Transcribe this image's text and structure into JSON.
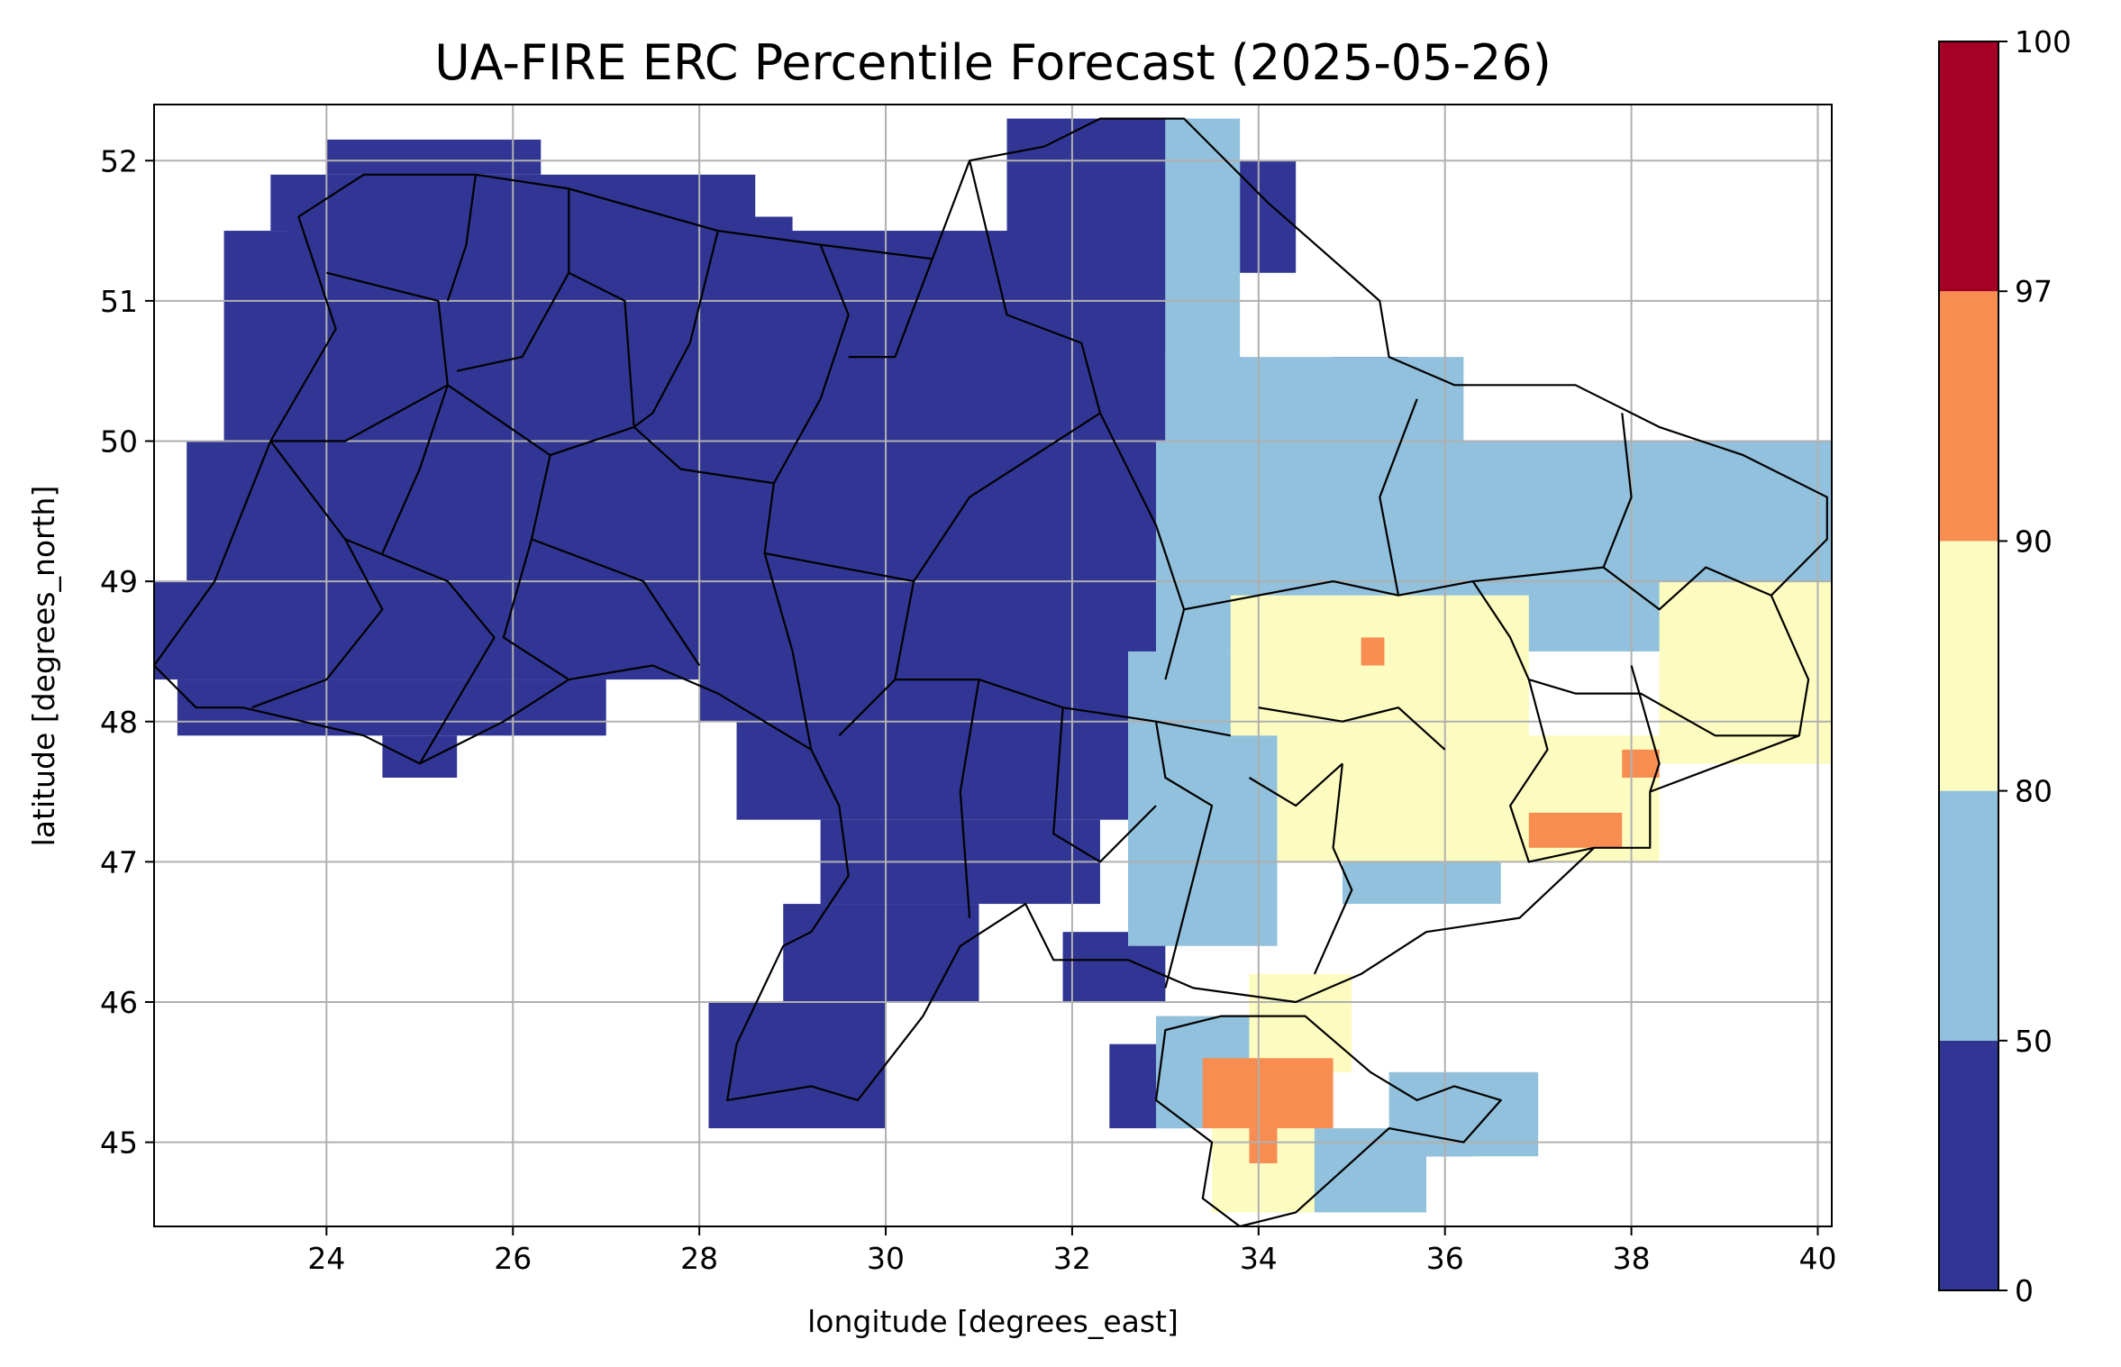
{
  "chart_data": {
    "type": "heatmap",
    "title": "UA-FIRE ERC Percentile Forecast (2025-05-26)",
    "xlabel": "longitude [degrees_east]",
    "ylabel": "latitude [degrees_north]",
    "xlim": [
      22.15,
      40.15
    ],
    "ylim": [
      44.4,
      52.4
    ],
    "xticks": [
      24,
      26,
      28,
      30,
      32,
      34,
      36,
      38,
      40
    ],
    "yticks": [
      45,
      46,
      47,
      48,
      49,
      50,
      51,
      52
    ],
    "grid": true,
    "cell_size_deg": [
      0.25,
      0.25
    ],
    "colorbar": {
      "bounds": [
        0,
        50,
        80,
        90,
        97,
        100
      ],
      "colors": [
        "#313695",
        "#91c1dc",
        "#fdfcc0",
        "#f88d52",
        "#a50026"
      ],
      "tick_labels": [
        "0",
        "50",
        "80",
        "90",
        "97",
        "100"
      ]
    },
    "categories": [
      {
        "name": "0-50",
        "color": "#313695"
      },
      {
        "name": "50-80",
        "color": "#91c1dc"
      },
      {
        "name": "80-90",
        "color": "#fdfcc0"
      },
      {
        "name": "90-97",
        "color": "#f88d52"
      }
    ],
    "cells": [
      {
        "class": 0,
        "lon": [
          24.0,
          26.3
        ],
        "lat": [
          51.9,
          52.15
        ]
      },
      {
        "class": 0,
        "lon": [
          23.4,
          28.6
        ],
        "lat": [
          51.5,
          51.9
        ]
      },
      {
        "class": 0,
        "lon": [
          23.6,
          29.0
        ],
        "lat": [
          51.2,
          51.6
        ]
      },
      {
        "class": 0,
        "lon": [
          22.9,
          32.0
        ],
        "lat": [
          49.9,
          51.5
        ]
      },
      {
        "class": 0,
        "lon": [
          22.5,
          33.0
        ],
        "lat": [
          49.0,
          50.0
        ]
      },
      {
        "class": 0,
        "lon": [
          22.15,
          32.9
        ],
        "lat": [
          48.3,
          49.0
        ]
      },
      {
        "class": 0,
        "lon": [
          22.4,
          27.0
        ],
        "lat": [
          47.9,
          48.3
        ]
      },
      {
        "class": 0,
        "lon": [
          24.6,
          25.4
        ],
        "lat": [
          47.6,
          47.9
        ]
      },
      {
        "class": 0,
        "lon": [
          28.0,
          32.9
        ],
        "lat": [
          48.0,
          48.4
        ]
      },
      {
        "class": 0,
        "lon": [
          28.4,
          32.6
        ],
        "lat": [
          47.3,
          48.0
        ]
      },
      {
        "class": 0,
        "lon": [
          29.3,
          32.3
        ],
        "lat": [
          46.7,
          47.3
        ]
      },
      {
        "class": 0,
        "lon": [
          28.9,
          31.0
        ],
        "lat": [
          46.0,
          46.7
        ]
      },
      {
        "class": 0,
        "lon": [
          28.1,
          30.0
        ],
        "lat": [
          45.1,
          46.0
        ]
      },
      {
        "class": 0,
        "lon": [
          31.3,
          33.0
        ],
        "lat": [
          50.0,
          52.3
        ]
      },
      {
        "class": 0,
        "lon": [
          31.9,
          33.0
        ],
        "lat": [
          46.0,
          46.5
        ]
      },
      {
        "class": 0,
        "lon": [
          32.4,
          33.2
        ],
        "lat": [
          45.1,
          45.7
        ]
      },
      {
        "class": 0,
        "lon": [
          33.8,
          34.4
        ],
        "lat": [
          51.2,
          52.0
        ]
      },
      {
        "class": 0,
        "lon": [
          34.8,
          35.6
        ],
        "lat": [
          50.2,
          50.6
        ]
      },
      {
        "class": 0,
        "lon": [
          35.7,
          36.3
        ],
        "lat": [
          44.9,
          45.1
        ]
      },
      {
        "class": 1,
        "lon": [
          33.0,
          33.8
        ],
        "lat": [
          49.0,
          52.3
        ]
      },
      {
        "class": 1,
        "lon": [
          33.0,
          36.2
        ],
        "lat": [
          48.8,
          50.6
        ]
      },
      {
        "class": 1,
        "lon": [
          32.9,
          40.2
        ],
        "lat": [
          48.5,
          50.0
        ]
      },
      {
        "class": 1,
        "lon": [
          32.6,
          34.2
        ],
        "lat": [
          46.4,
          48.5
        ]
      },
      {
        "class": 1,
        "lon": [
          34.9,
          36.6
        ],
        "lat": [
          46.7,
          47.9
        ]
      },
      {
        "class": 1,
        "lon": [
          32.9,
          34.3
        ],
        "lat": [
          45.1,
          45.9
        ]
      },
      {
        "class": 1,
        "lon": [
          35.4,
          37.0
        ],
        "lat": [
          44.9,
          45.5
        ]
      },
      {
        "class": 1,
        "lon": [
          34.0,
          35.8
        ],
        "lat": [
          44.5,
          45.1
        ]
      },
      {
        "class": 2,
        "lon": [
          33.7,
          36.9
        ],
        "lat": [
          47.9,
          48.9
        ]
      },
      {
        "class": 2,
        "lon": [
          34.2,
          38.3
        ],
        "lat": [
          47.0,
          47.9
        ]
      },
      {
        "class": 2,
        "lon": [
          38.3,
          40.2
        ],
        "lat": [
          47.7,
          49.0
        ]
      },
      {
        "class": 2,
        "lon": [
          33.9,
          35.0
        ],
        "lat": [
          45.5,
          46.2
        ]
      },
      {
        "class": 2,
        "lon": [
          33.5,
          34.6
        ],
        "lat": [
          44.5,
          45.4
        ]
      },
      {
        "class": 3,
        "lon": [
          35.1,
          35.35
        ],
        "lat": [
          48.4,
          48.6
        ]
      },
      {
        "class": 3,
        "lon": [
          37.9,
          38.3
        ],
        "lat": [
          47.6,
          47.8
        ]
      },
      {
        "class": 3,
        "lon": [
          36.9,
          37.9
        ],
        "lat": [
          47.1,
          47.35
        ]
      },
      {
        "class": 3,
        "lon": [
          33.4,
          34.8
        ],
        "lat": [
          45.1,
          45.6
        ]
      },
      {
        "class": 3,
        "lon": [
          33.9,
          34.2
        ],
        "lat": [
          44.85,
          45.1
        ]
      }
    ],
    "borders": {
      "country_outline": [
        [
          22.15,
          48.4
        ],
        [
          22.8,
          49.0
        ],
        [
          23.4,
          50.0
        ],
        [
          24.1,
          50.8
        ],
        [
          23.7,
          51.6
        ],
        [
          24.4,
          51.9
        ],
        [
          25.6,
          51.9
        ],
        [
          26.6,
          51.8
        ],
        [
          28.2,
          51.5
        ],
        [
          29.3,
          51.4
        ],
        [
          30.5,
          51.3
        ],
        [
          30.9,
          52.0
        ],
        [
          31.7,
          52.1
        ],
        [
          32.3,
          52.3
        ],
        [
          33.2,
          52.3
        ],
        [
          34.1,
          51.7
        ],
        [
          35.3,
          51.0
        ],
        [
          35.4,
          50.6
        ],
        [
          36.1,
          50.4
        ],
        [
          37.4,
          50.4
        ],
        [
          38.3,
          50.1
        ],
        [
          39.2,
          49.9
        ],
        [
          40.1,
          49.6
        ],
        [
          40.1,
          49.3
        ],
        [
          39.5,
          48.9
        ],
        [
          39.9,
          48.3
        ],
        [
          39.8,
          47.9
        ],
        [
          38.2,
          47.5
        ],
        [
          38.2,
          47.1
        ],
        [
          37.6,
          47.1
        ],
        [
          36.8,
          46.6
        ],
        [
          35.8,
          46.5
        ],
        [
          35.1,
          46.2
        ],
        [
          34.4,
          46.0
        ],
        [
          33.3,
          46.1
        ],
        [
          32.6,
          46.3
        ],
        [
          31.8,
          46.3
        ],
        [
          31.5,
          46.7
        ],
        [
          30.8,
          46.4
        ],
        [
          30.4,
          45.9
        ],
        [
          29.7,
          45.3
        ],
        [
          29.2,
          45.4
        ],
        [
          28.3,
          45.3
        ],
        [
          28.4,
          45.7
        ],
        [
          28.9,
          46.4
        ],
        [
          29.2,
          46.5
        ],
        [
          29.6,
          46.9
        ],
        [
          29.5,
          47.4
        ],
        [
          29.2,
          47.8
        ],
        [
          28.2,
          48.2
        ],
        [
          27.5,
          48.4
        ],
        [
          26.6,
          48.3
        ],
        [
          25.9,
          48.0
        ],
        [
          25.0,
          47.7
        ],
        [
          24.4,
          47.9
        ],
        [
          23.1,
          48.1
        ],
        [
          22.6,
          48.1
        ],
        [
          22.15,
          48.4
        ]
      ],
      "crimea_outline": [
        [
          33.0,
          45.8
        ],
        [
          33.6,
          45.9
        ],
        [
          34.5,
          45.9
        ],
        [
          35.2,
          45.5
        ],
        [
          35.7,
          45.3
        ],
        [
          36.1,
          45.4
        ],
        [
          36.6,
          45.3
        ],
        [
          36.2,
          45.0
        ],
        [
          35.4,
          45.1
        ],
        [
          34.9,
          44.8
        ],
        [
          34.4,
          44.5
        ],
        [
          33.8,
          44.4
        ],
        [
          33.4,
          44.6
        ],
        [
          33.5,
          45.0
        ],
        [
          32.9,
          45.3
        ],
        [
          33.0,
          45.8
        ]
      ],
      "internal_borders": [
        [
          [
            24.0,
            51.2
          ],
          [
            25.2,
            51.0
          ],
          [
            25.3,
            50.4
          ],
          [
            24.2,
            50.0
          ],
          [
            23.4,
            50.0
          ]
        ],
        [
          [
            25.6,
            51.9
          ],
          [
            25.5,
            51.4
          ],
          [
            25.3,
            51.0
          ]
        ],
        [
          [
            26.6,
            51.8
          ],
          [
            26.6,
            51.2
          ],
          [
            26.1,
            50.6
          ],
          [
            25.4,
            50.5
          ]
        ],
        [
          [
            26.6,
            51.2
          ],
          [
            27.2,
            51.0
          ],
          [
            27.3,
            50.1
          ],
          [
            26.4,
            49.9
          ],
          [
            25.3,
            50.4
          ]
        ],
        [
          [
            28.2,
            51.5
          ],
          [
            27.9,
            50.7
          ],
          [
            27.5,
            50.2
          ],
          [
            27.3,
            50.1
          ]
        ],
        [
          [
            29.3,
            51.4
          ],
          [
            29.6,
            50.9
          ],
          [
            29.3,
            50.3
          ],
          [
            28.8,
            49.7
          ],
          [
            27.8,
            49.8
          ],
          [
            27.3,
            50.1
          ]
        ],
        [
          [
            30.5,
            51.3
          ],
          [
            30.1,
            50.6
          ],
          [
            29.6,
            50.6
          ]
        ],
        [
          [
            30.9,
            52.0
          ],
          [
            31.3,
            50.9
          ],
          [
            32.1,
            50.7
          ],
          [
            32.3,
            50.2
          ]
        ],
        [
          [
            23.4,
            50.0
          ],
          [
            24.2,
            49.3
          ],
          [
            24.6,
            48.8
          ],
          [
            24.0,
            48.3
          ],
          [
            23.2,
            48.1
          ]
        ],
        [
          [
            24.2,
            49.3
          ],
          [
            25.3,
            49.0
          ],
          [
            25.8,
            48.6
          ],
          [
            25.0,
            47.7
          ]
        ],
        [
          [
            25.3,
            50.4
          ],
          [
            25.0,
            49.8
          ],
          [
            24.6,
            49.2
          ]
        ],
        [
          [
            26.4,
            49.9
          ],
          [
            26.2,
            49.3
          ],
          [
            25.9,
            48.6
          ],
          [
            26.6,
            48.3
          ]
        ],
        [
          [
            26.2,
            49.3
          ],
          [
            27.4,
            49.0
          ],
          [
            28.0,
            48.4
          ]
        ],
        [
          [
            28.8,
            49.7
          ],
          [
            28.7,
            49.2
          ],
          [
            29.0,
            48.5
          ],
          [
            29.2,
            47.8
          ]
        ],
        [
          [
            28.7,
            49.2
          ],
          [
            30.3,
            49.0
          ],
          [
            30.9,
            49.6
          ],
          [
            31.6,
            49.9
          ],
          [
            32.3,
            50.2
          ]
        ],
        [
          [
            30.3,
            49.0
          ],
          [
            30.1,
            48.3
          ],
          [
            29.5,
            47.9
          ]
        ],
        [
          [
            30.1,
            48.3
          ],
          [
            31.0,
            48.3
          ],
          [
            31.9,
            48.1
          ],
          [
            32.9,
            48.0
          ],
          [
            33.7,
            47.9
          ]
        ],
        [
          [
            31.0,
            48.3
          ],
          [
            30.8,
            47.5
          ],
          [
            30.9,
            46.6
          ]
        ],
        [
          [
            31.9,
            48.1
          ],
          [
            31.8,
            47.2
          ],
          [
            32.3,
            47.0
          ],
          [
            32.9,
            47.4
          ]
        ],
        [
          [
            32.3,
            50.2
          ],
          [
            32.9,
            49.4
          ],
          [
            33.2,
            48.8
          ],
          [
            33.0,
            48.3
          ]
        ],
        [
          [
            33.2,
            48.8
          ],
          [
            34.8,
            49.0
          ],
          [
            35.5,
            48.9
          ],
          [
            36.3,
            49.0
          ],
          [
            36.7,
            48.6
          ],
          [
            36.9,
            48.3
          ],
          [
            37.4,
            48.2
          ],
          [
            38.1,
            48.2
          ],
          [
            38.9,
            47.9
          ],
          [
            39.8,
            47.9
          ]
        ],
        [
          [
            35.5,
            48.9
          ],
          [
            35.3,
            49.6
          ],
          [
            35.7,
            50.3
          ]
        ],
        [
          [
            36.3,
            49.0
          ],
          [
            37.7,
            49.1
          ],
          [
            38.0,
            49.6
          ],
          [
            37.9,
            50.2
          ]
        ],
        [
          [
            37.7,
            49.1
          ],
          [
            38.3,
            48.8
          ],
          [
            38.8,
            49.1
          ],
          [
            39.5,
            48.9
          ]
        ],
        [
          [
            34.0,
            48.1
          ],
          [
            34.9,
            48.0
          ],
          [
            35.5,
            48.1
          ],
          [
            36.0,
            47.8
          ]
        ],
        [
          [
            33.9,
            47.6
          ],
          [
            34.4,
            47.4
          ],
          [
            34.9,
            47.7
          ]
        ],
        [
          [
            34.9,
            47.7
          ],
          [
            34.8,
            47.1
          ],
          [
            35.0,
            46.8
          ],
          [
            34.6,
            46.2
          ]
        ],
        [
          [
            33.0,
            46.1
          ],
          [
            33.5,
            47.4
          ],
          [
            33.0,
            47.6
          ],
          [
            32.9,
            48.0
          ]
        ],
        [
          [
            36.9,
            48.3
          ],
          [
            37.1,
            47.8
          ],
          [
            36.7,
            47.4
          ],
          [
            36.9,
            47.0
          ],
          [
            37.6,
            47.1
          ]
        ],
        [
          [
            38.0,
            48.4
          ],
          [
            38.3,
            47.7
          ],
          [
            38.2,
            47.5
          ]
        ]
      ]
    }
  }
}
